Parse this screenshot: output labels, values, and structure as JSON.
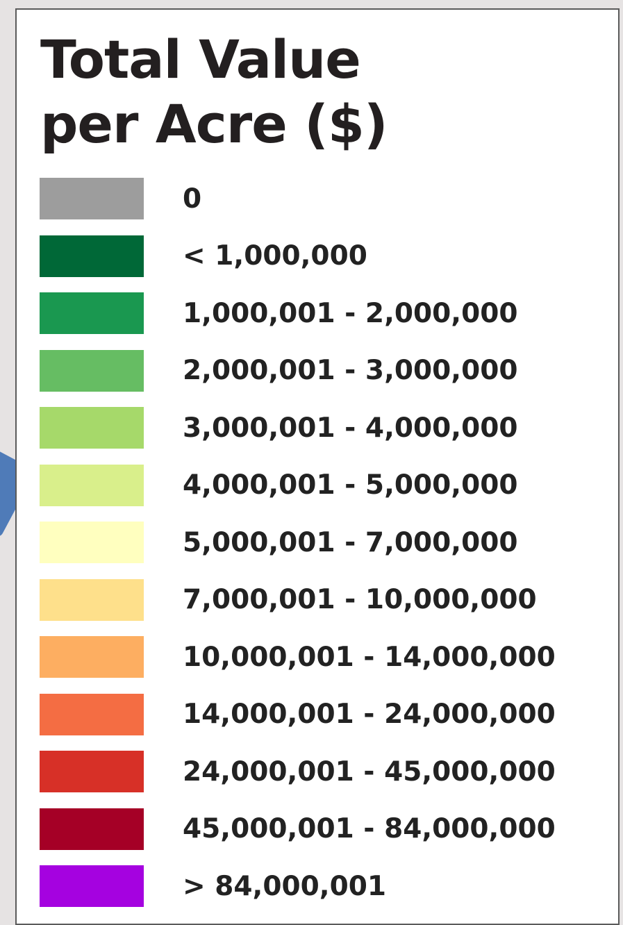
{
  "legend": {
    "title_line1": "Total Value",
    "title_line2": "per Acre ($)",
    "items": [
      {
        "label": "0",
        "color": "#9d9d9d"
      },
      {
        "label": "< 1,000,000",
        "color": "#006837"
      },
      {
        "label": "1,000,001 - 2,000,000",
        "color": "#1a9850"
      },
      {
        "label": "2,000,001 - 3,000,000",
        "color": "#66bd63"
      },
      {
        "label": "3,000,001 - 4,000,000",
        "color": "#a6d96a"
      },
      {
        "label": "4,000,001 - 5,000,000",
        "color": "#d9ef8b"
      },
      {
        "label": "5,000,001 - 7,000,000",
        "color": "#ffffbf"
      },
      {
        "label": "7,000,001 - 10,000,000",
        "color": "#fee08b"
      },
      {
        "label": "10,000,001 - 14,000,000",
        "color": "#fdae61"
      },
      {
        "label": "14,000,001 - 24,000,000",
        "color": "#f46d43"
      },
      {
        "label": "24,000,001 - 45,000,000",
        "color": "#d73027"
      },
      {
        "label": "45,000,001 - 84,000,000",
        "color": "#a50026"
      },
      {
        "label": "> 84,000,001",
        "color": "#a502e0"
      }
    ]
  },
  "map": {
    "edge_color": "#4f7bb8"
  }
}
